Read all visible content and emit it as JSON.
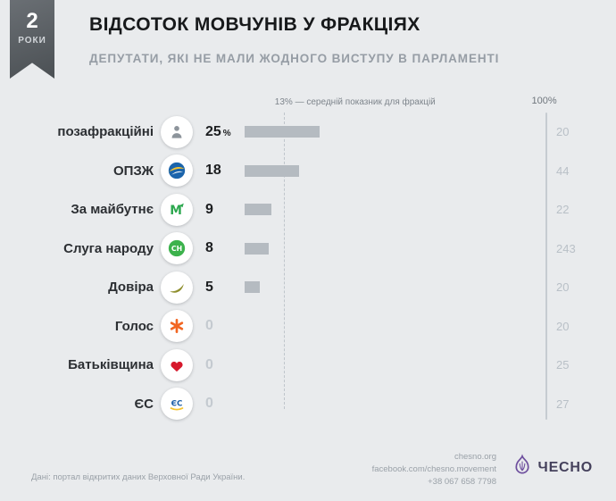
{
  "badge": {
    "number": "2",
    "caption": "РОКИ"
  },
  "header": {
    "title": "ВІДСОТОК МОВЧУНІВ У ФРАКЦІЯХ",
    "subtitle": "ДЕПУТАТИ, ЯКІ НЕ МАЛИ ЖОДНОГО ВИСТУПУ В ПАРЛАМЕНТІ"
  },
  "chart_data": {
    "type": "bar",
    "orientation": "horizontal",
    "title": "ВІДСОТОК МОВЧУНІВ У ФРАКЦІЯХ",
    "xlim": [
      0,
      100
    ],
    "average_value": 13,
    "average_label": "13% — середній показник для фракцій",
    "axis_max_label": "100%",
    "bar_color": "#b5bbc1",
    "categories": [
      "позафракційні",
      "ОПЗЖ",
      "За майбутнє",
      "Слуга народу",
      "Довіра",
      "Голос",
      "Батьківщина",
      "ЄС"
    ],
    "values": [
      25,
      18,
      9,
      8,
      5,
      0,
      0,
      0
    ],
    "right_axis_values": [
      20,
      44,
      22,
      243,
      20,
      20,
      25,
      27
    ]
  },
  "rows": [
    {
      "label": "позафракційні",
      "icon": "person-icon",
      "value": "25",
      "unit": "%",
      "size": "20"
    },
    {
      "label": "ОПЗЖ",
      "icon": "opzzh-icon",
      "value": "18",
      "unit": "",
      "size": "44"
    },
    {
      "label": "За майбутнє",
      "icon": "za-maibutnie-icon",
      "value": "9",
      "unit": "",
      "size": "22"
    },
    {
      "label": "Слуга народу",
      "icon": "sluha-narodu-icon",
      "value": "8",
      "unit": "",
      "size": "243"
    },
    {
      "label": "Довіра",
      "icon": "dovira-icon",
      "value": "5",
      "unit": "",
      "size": "20"
    },
    {
      "label": "Голос",
      "icon": "holos-icon",
      "value": "0",
      "unit": "",
      "size": "20"
    },
    {
      "label": "Батьківщина",
      "icon": "batkivshchyna-icon",
      "value": "0",
      "unit": "",
      "size": "25"
    },
    {
      "label": "ЄС",
      "icon": "yes-icon",
      "value": "0",
      "unit": "",
      "size": "27"
    }
  ],
  "footer": {
    "source": "Дані: портал відкритих даних Верховної Ради України.",
    "website": "chesno.org",
    "facebook": "facebook.com/chesno.movement",
    "phone": "+38 067 658 7798",
    "logo_text": "ЧЕСНО"
  }
}
